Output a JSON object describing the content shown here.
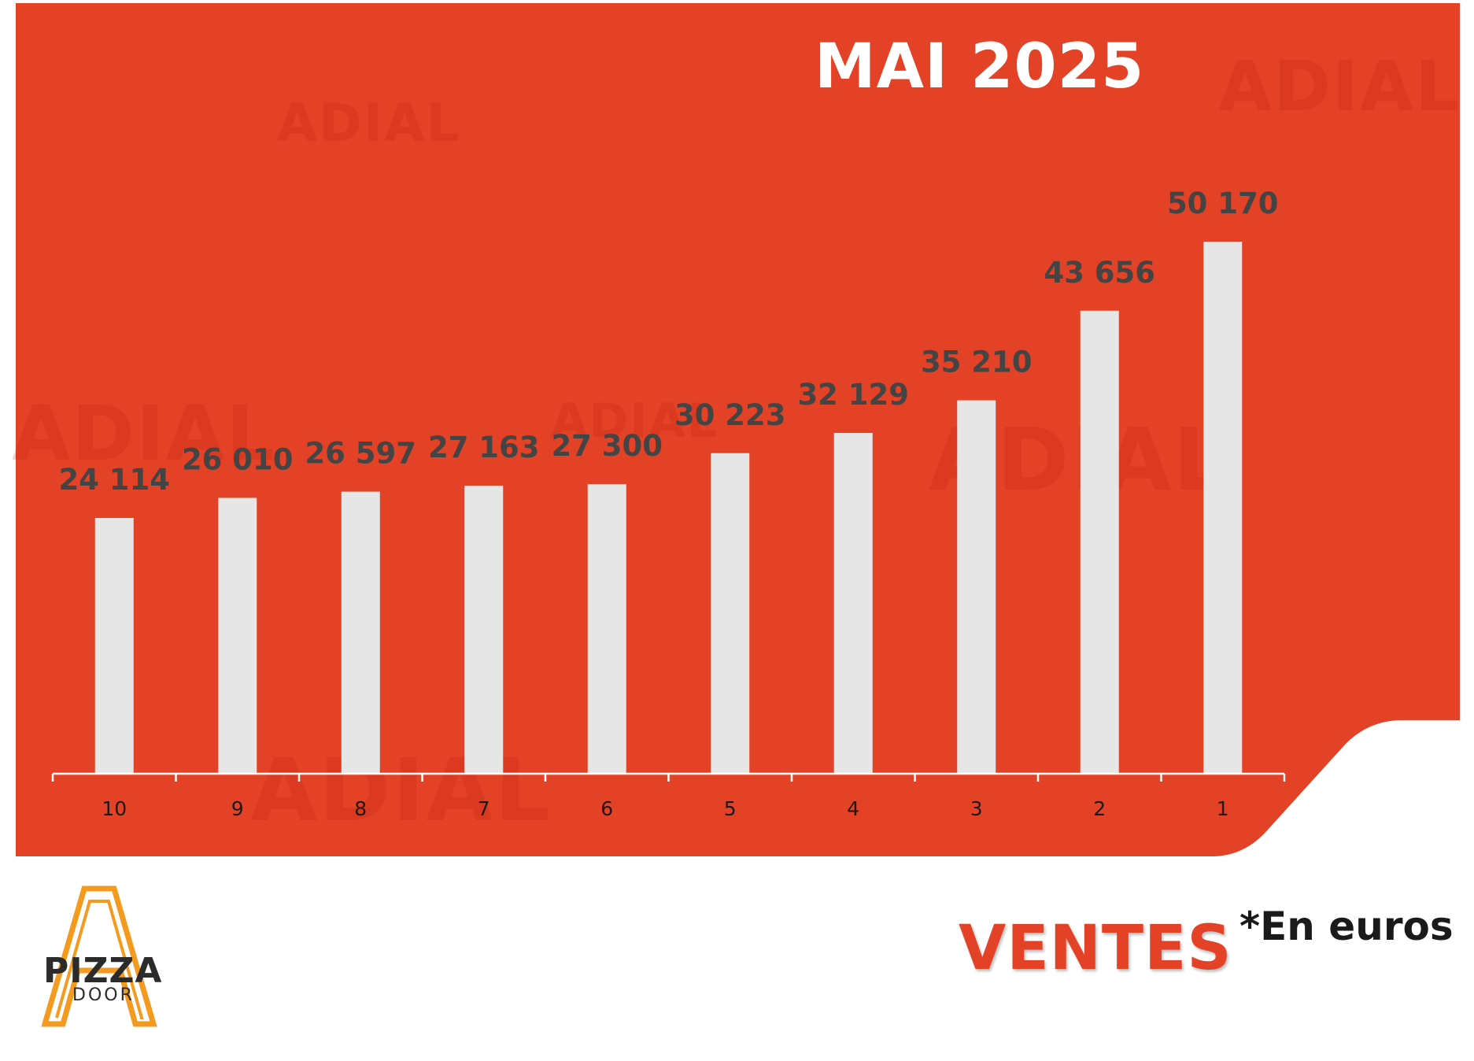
{
  "colors": {
    "panel": "#e34227",
    "bar": "#e6e6e6",
    "value_label": "#444444",
    "axis": "#ffffff",
    "footer_title": "#e34227"
  },
  "watermark_text": "ADIAL",
  "chart_data": {
    "type": "bar",
    "title": "MAI 2025",
    "xlabel": "",
    "ylabel": "",
    "categories": [
      "10",
      "9",
      "8",
      "7",
      "6",
      "5",
      "4",
      "3",
      "2",
      "1"
    ],
    "values": [
      24114,
      26010,
      26597,
      27163,
      27300,
      30223,
      32129,
      35210,
      43656,
      50170
    ],
    "value_labels": [
      "24 114",
      "26 010",
      "26 597",
      "27 163",
      "27 300",
      "30 223",
      "32 129",
      "35 210",
      "43 656",
      "50 170"
    ],
    "ylim": [
      0,
      50170
    ],
    "grid": false,
    "legend": "none"
  },
  "footer": {
    "title": "VENTES",
    "note": "*En euros",
    "logo": {
      "line1": "PIZZA",
      "line2": "DOOR"
    }
  }
}
